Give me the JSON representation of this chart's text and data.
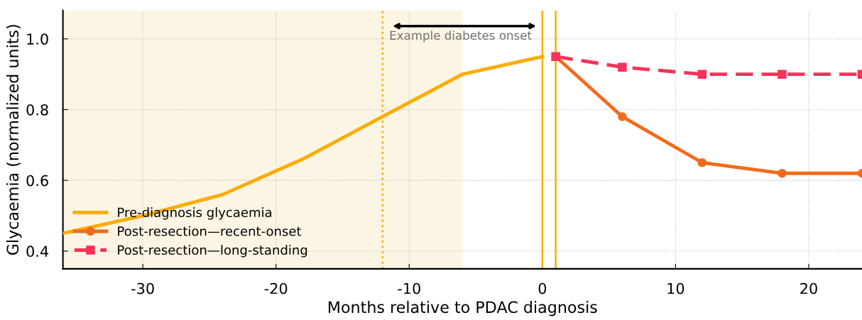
{
  "chart_data": {
    "type": "line",
    "xlabel": "Months relative to PDAC diagnosis",
    "ylabel": "Glycaemia (normalized units)",
    "xlim": [
      -36,
      24
    ],
    "ylim": [
      0.35,
      1.08
    ],
    "xticks": [
      -30,
      -20,
      -10,
      0,
      10,
      20
    ],
    "yticks": [
      0.4,
      0.6,
      0.8,
      {
        "value": 1.0,
        "label": "1.0"
      }
    ],
    "grid": true,
    "legend": "bottom left",
    "series": [
      {
        "name": "Pre-diagnosis glycaemia",
        "color": "#fcac00",
        "marker": "none",
        "line_style": "solid",
        "x": [
          -36,
          -30,
          -24,
          -18,
          -12,
          -6,
          0
        ],
        "values": [
          0.45,
          0.5,
          0.56,
          0.66,
          0.78,
          0.9,
          0.95
        ]
      },
      {
        "name": "Post-resection—recent-onset",
        "color": "#f26b1d",
        "marker": "circle",
        "line_style": "solid",
        "x": [
          1,
          6,
          12,
          18,
          24
        ],
        "values": [
          0.95,
          0.78,
          0.65,
          0.62,
          0.62
        ]
      },
      {
        "name": "Post-resection—long-standing",
        "color": "#f7325a",
        "marker": "square",
        "line_style": "dashed",
        "x": [
          1,
          6,
          12,
          18,
          24
        ],
        "values": [
          0.95,
          0.92,
          0.9,
          0.9,
          0.9
        ]
      }
    ],
    "ref_lines": [
      {
        "axis": "x",
        "value": 0,
        "color": "#fcac00",
        "line_style": "solid"
      },
      {
        "axis": "x",
        "value": 1,
        "color": "#fcac00",
        "line_style": "solid"
      },
      {
        "axis": "x",
        "value": -12,
        "color": "#fcac00",
        "line_style": "dotted"
      }
    ],
    "bands": [
      {
        "axis": "x",
        "from": -36,
        "to": -6,
        "color": "#fdf5e4"
      }
    ],
    "annotations": [
      "Example diabetes onset"
    ]
  }
}
